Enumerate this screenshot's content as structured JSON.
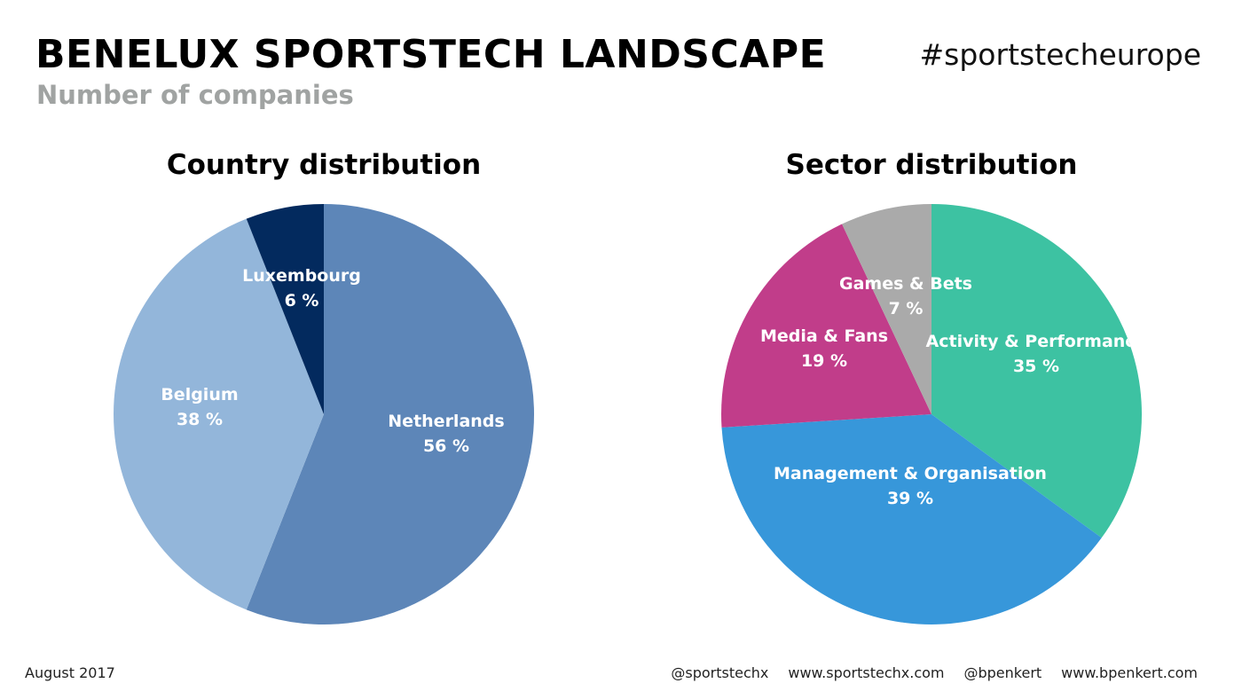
{
  "header": {
    "title": "BENELUX SPORTSTECH LANDSCAPE",
    "subtitle": "Number of companies",
    "hashtag": "#sportstecheurope"
  },
  "footer": {
    "date": "August 2017",
    "links": [
      "@sportstechx",
      "www.sportstechx.com",
      "@bpenkert",
      "www.bpenkert.com"
    ]
  },
  "chart_data": [
    {
      "type": "pie",
      "title": "Country distribution",
      "categories": [
        "Netherlands",
        "Belgium",
        "Luxembourg"
      ],
      "values": [
        56,
        38,
        6
      ],
      "labels": [
        "56 %",
        "38 %",
        "6 %"
      ],
      "colors": [
        "#5d86b8",
        "#93b6da",
        "#032a5e"
      ]
    },
    {
      "type": "pie",
      "title": "Sector distribution",
      "categories": [
        "Activity & Performance",
        "Management & Organisation",
        "Media & Fans",
        "Games & Bets"
      ],
      "values": [
        35,
        39,
        19,
        7
      ],
      "labels": [
        "35 %",
        "39 %",
        "19 %",
        "7 %"
      ],
      "colors": [
        "#3dc2a2",
        "#3797da",
        "#c13d8a",
        "#aaaaaa"
      ]
    }
  ]
}
